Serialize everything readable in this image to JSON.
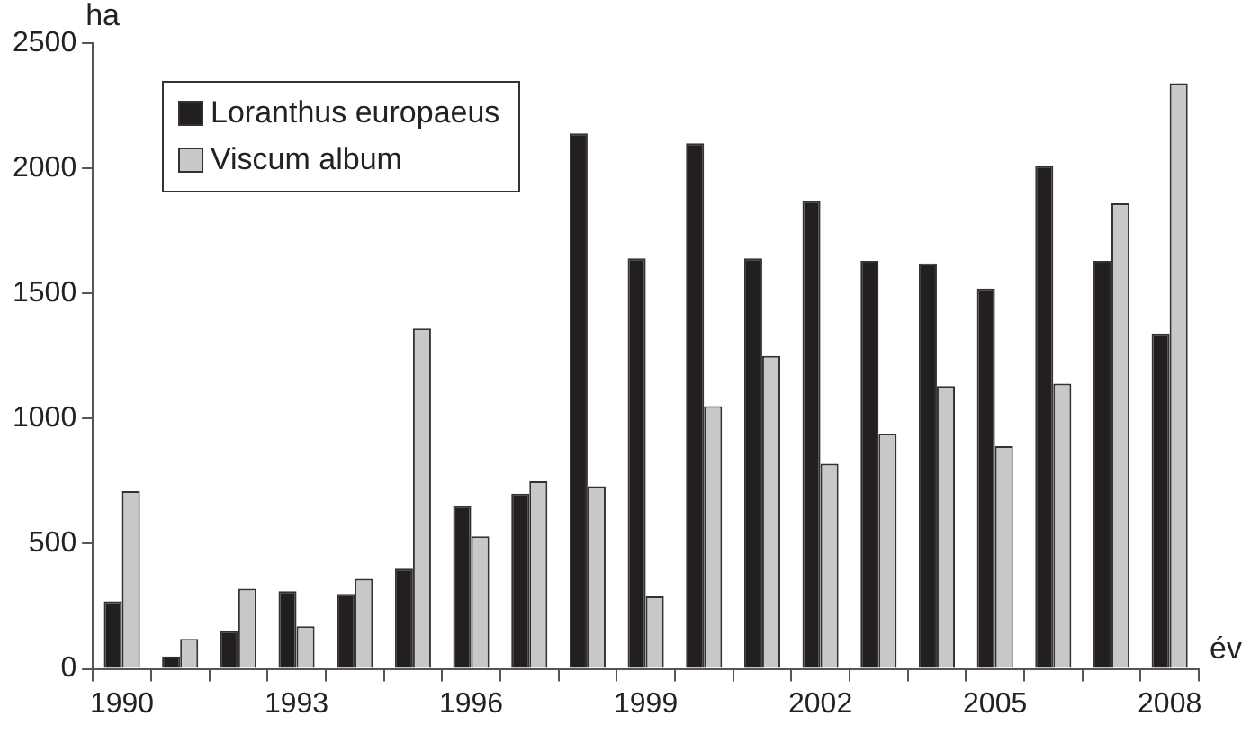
{
  "chart_data": {
    "type": "bar",
    "xlabel": "év",
    "ylabel": "ha",
    "categories": [
      "1990",
      null,
      null,
      "1993",
      null,
      null,
      "1996",
      null,
      null,
      "1999",
      null,
      null,
      "2002",
      null,
      null,
      "2005",
      null,
      null,
      "2008"
    ],
    "series": [
      {
        "name": "Loranthus europaeus",
        "color": "#231f20",
        "values": [
          270,
          50,
          150,
          310,
          300,
          400,
          650,
          700,
          2140,
          1640,
          2100,
          1640,
          1870,
          1630,
          1620,
          1520,
          2010,
          1630,
          1340
        ]
      },
      {
        "name": "Viscum album",
        "color": "#c8c8c8",
        "values": [
          710,
          120,
          320,
          170,
          360,
          1360,
          530,
          750,
          730,
          290,
          1050,
          1250,
          820,
          940,
          1130,
          890,
          1140,
          1860,
          2340
        ]
      }
    ],
    "ylim": [
      0,
      2500
    ],
    "yticks": [
      0,
      500,
      1000,
      1500,
      2000,
      2500
    ],
    "grid": false,
    "legend": "top left"
  }
}
